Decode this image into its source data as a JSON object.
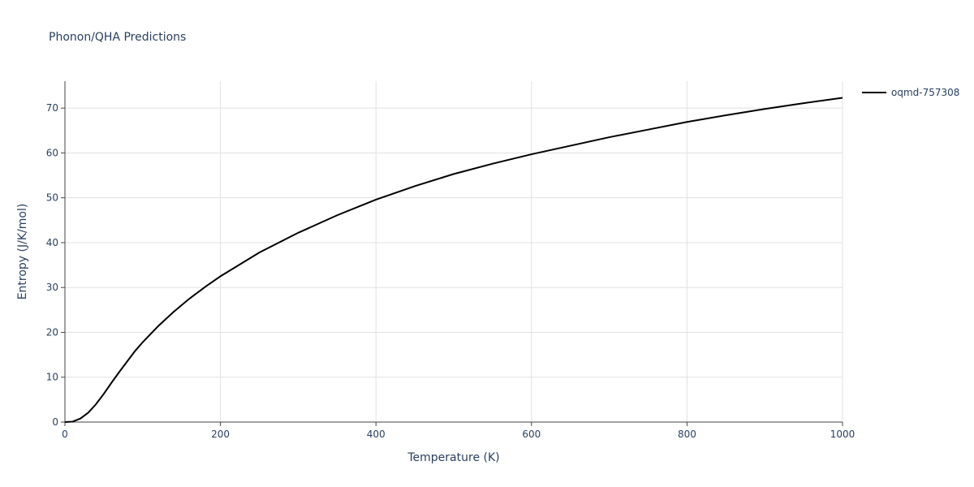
{
  "chart_data": {
    "type": "line",
    "title": "Phonon/QHA Predictions",
    "x_label": "Temperature (K)",
    "y_label": "Entropy (J/K/mol)",
    "x": [
      0,
      10,
      20,
      30,
      40,
      50,
      60,
      70,
      80,
      90,
      100,
      120,
      140,
      160,
      180,
      200,
      250,
      300,
      350,
      400,
      450,
      500,
      550,
      600,
      650,
      700,
      750,
      800,
      850,
      900,
      950,
      1000
    ],
    "series": [
      {
        "name": "oqmd-757308",
        "color": "#000000",
        "values": [
          0,
          0.1,
          0.8,
          2.1,
          4.0,
          6.3,
          8.8,
          11.2,
          13.5,
          15.8,
          17.8,
          21.4,
          24.6,
          27.5,
          30.1,
          32.5,
          37.8,
          42.2,
          46.1,
          49.6,
          52.6,
          55.3,
          57.6,
          59.7,
          61.6,
          63.5,
          65.2,
          66.9,
          68.4,
          69.8,
          71.1,
          72.3
        ]
      }
    ],
    "xlim": [
      0,
      1000
    ],
    "xticks": [
      0,
      200,
      400,
      600,
      800,
      1000
    ],
    "ylim": [
      0,
      76
    ],
    "yticks": [
      0,
      10,
      20,
      30,
      40,
      50,
      60,
      70
    ],
    "grid": true,
    "legend": "top-right"
  }
}
